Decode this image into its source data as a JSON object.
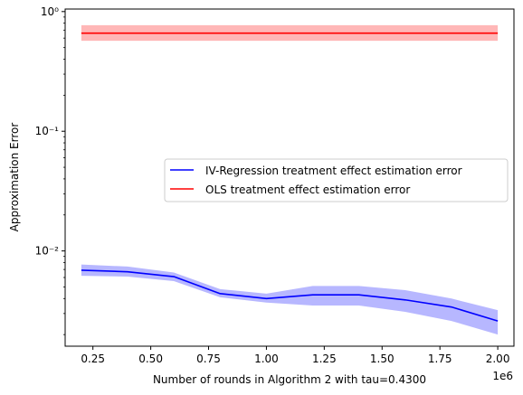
{
  "chart_data": {
    "type": "line",
    "xlabel": "Number of rounds in Algorithm 2 with tau=0.4300",
    "ylabel": "Approximation Error",
    "x_offset_label": "1e6",
    "xlim": [
      0.13,
      2.07
    ],
    "ylim": [
      0.0016,
      1.05
    ],
    "yscale": "log",
    "x_ticks": [
      0.25,
      0.5,
      0.75,
      1.0,
      1.25,
      1.5,
      1.75,
      2.0
    ],
    "x_tick_labels": [
      "0.25",
      "0.50",
      "0.75",
      "1.00",
      "1.25",
      "1.50",
      "1.75",
      "2.00"
    ],
    "y_ticks": [
      0.01,
      0.1,
      1
    ],
    "y_tick_labels": [
      "10⁻²",
      "10⁻¹",
      "10⁰"
    ],
    "grid": false,
    "legend_position": "center-right",
    "series": [
      {
        "name": "IV-Regression treatment effect estimation error",
        "color": "#0000ff",
        "band_color": "#aaaaff",
        "x": [
          0.2,
          0.4,
          0.6,
          0.8,
          1.0,
          1.2,
          1.4,
          1.6,
          1.8,
          2.0
        ],
        "y": [
          0.0069,
          0.0067,
          0.0061,
          0.0044,
          0.004,
          0.0043,
          0.0043,
          0.0039,
          0.0034,
          0.0026
        ],
        "y_low": [
          0.0062,
          0.0061,
          0.0056,
          0.0041,
          0.0037,
          0.0035,
          0.0035,
          0.0031,
          0.0026,
          0.002
        ],
        "y_high": [
          0.0077,
          0.0074,
          0.0066,
          0.0048,
          0.0044,
          0.0051,
          0.0051,
          0.0047,
          0.004,
          0.0032
        ]
      },
      {
        "name": "OLS treatment effect estimation error",
        "color": "#ff0000",
        "band_color": "#ffaaaa",
        "x": [
          0.2,
          0.4,
          0.6,
          0.8,
          1.0,
          1.2,
          1.4,
          1.6,
          1.8,
          2.0
        ],
        "y": [
          0.66,
          0.66,
          0.66,
          0.66,
          0.66,
          0.66,
          0.66,
          0.66,
          0.66,
          0.66
        ],
        "y_low": [
          0.57,
          0.57,
          0.57,
          0.57,
          0.57,
          0.57,
          0.57,
          0.57,
          0.57,
          0.57
        ],
        "y_high": [
          0.77,
          0.77,
          0.77,
          0.77,
          0.77,
          0.77,
          0.77,
          0.77,
          0.77,
          0.77
        ]
      }
    ]
  }
}
